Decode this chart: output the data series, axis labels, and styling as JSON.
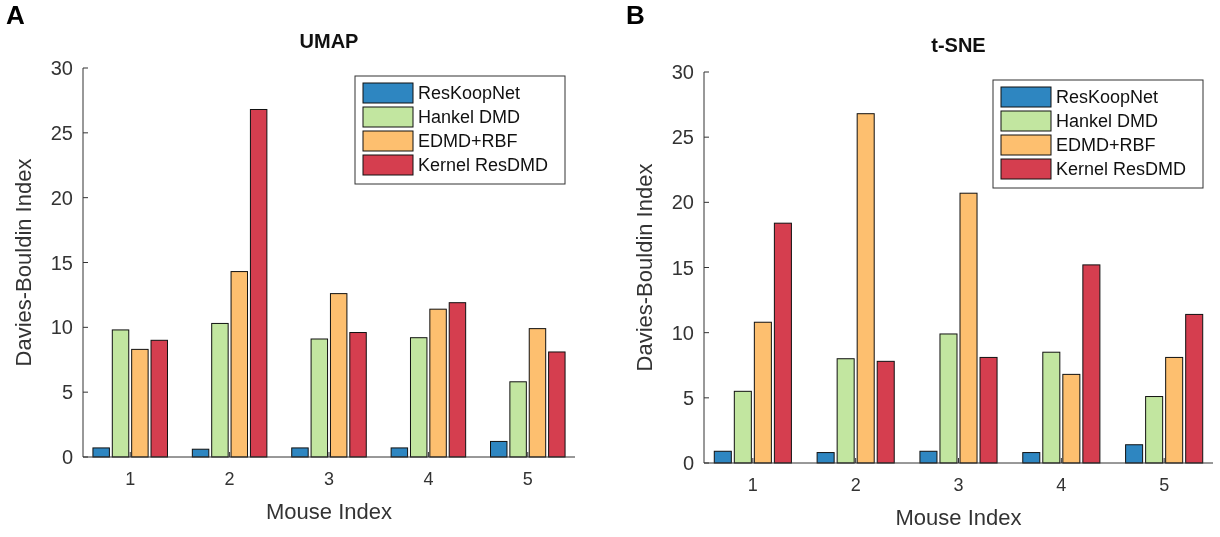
{
  "chart_data": [
    {
      "type": "bar",
      "title": "UMAP",
      "xlabel": "Mouse Index",
      "ylabel": "Davies-Bouldin Index",
      "annotations": [
        "A"
      ],
      "categories": [
        "1",
        "2",
        "3",
        "4",
        "5"
      ],
      "ylim": [
        0,
        30
      ],
      "yticks": [
        0,
        5,
        10,
        15,
        20,
        25,
        30
      ],
      "legend": "top right",
      "series": [
        {
          "name": "ResKoopNet",
          "color": "#2e86c1",
          "values": [
            0.7,
            0.6,
            0.7,
            0.7,
            1.2
          ]
        },
        {
          "name": "Hankel DMD",
          "color": "#c2e6a0",
          "values": [
            9.8,
            10.3,
            9.1,
            9.2,
            5.8
          ]
        },
        {
          "name": "EDMD+RBF",
          "color": "#fdbf6f",
          "values": [
            8.3,
            14.3,
            12.6,
            11.4,
            9.9
          ]
        },
        {
          "name": "Kernel ResDMD",
          "color": "#d53e4f",
          "values": [
            9.0,
            26.8,
            9.6,
            11.9,
            8.1
          ]
        }
      ]
    },
    {
      "type": "bar",
      "title": "t-SNE",
      "xlabel": "Mouse Index",
      "ylabel": "Davies-Bouldin Index",
      "annotations": [
        "B"
      ],
      "categories": [
        "1",
        "2",
        "3",
        "4",
        "5"
      ],
      "ylim": [
        0,
        30
      ],
      "yticks": [
        0,
        5,
        10,
        15,
        20,
        25,
        30
      ],
      "legend": "top right",
      "series": [
        {
          "name": "ResKoopNet",
          "color": "#2e86c1",
          "values": [
            0.9,
            0.8,
            0.9,
            0.8,
            1.4
          ]
        },
        {
          "name": "Hankel DMD",
          "color": "#c2e6a0",
          "values": [
            5.5,
            8.0,
            9.9,
            8.5,
            5.1
          ]
        },
        {
          "name": "EDMD+RBF",
          "color": "#fdbf6f",
          "values": [
            10.8,
            26.8,
            20.7,
            6.8,
            8.1
          ]
        },
        {
          "name": "Kernel ResDMD",
          "color": "#d53e4f",
          "values": [
            18.4,
            7.8,
            8.1,
            15.2,
            11.4
          ]
        }
      ]
    }
  ]
}
